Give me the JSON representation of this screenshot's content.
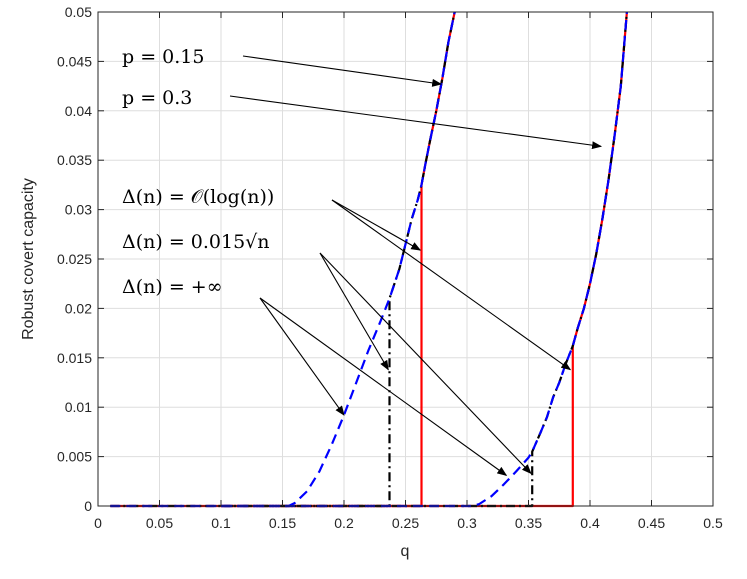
{
  "chart_data": {
    "type": "line",
    "xlabel": "q",
    "ylabel": "Robust covert capacity",
    "xlim": [
      0,
      0.5
    ],
    "ylim": [
      0,
      0.05
    ],
    "grid": true,
    "xticks": [
      "0",
      "0.05",
      "0.1",
      "0.15",
      "0.2",
      "0.25",
      "0.3",
      "0.35",
      "0.4",
      "0.45",
      "0.5"
    ],
    "yticks": [
      "0",
      "0.005",
      "0.01",
      "0.015",
      "0.02",
      "0.025",
      "0.03",
      "0.035",
      "0.04",
      "0.045",
      "0.05"
    ],
    "series": [
      {
        "style": "red-solid",
        "color": "#ff0000",
        "segments": [
          {
            "x": [
              0.01,
              0.263,
              0.263,
              0.266,
              0.27,
              0.275,
              0.28,
              0.285,
              0.29
            ],
            "y": [
              0,
              0,
              0.0325,
              0.0345,
              0.037,
              0.04,
              0.0433,
              0.047,
              0.05
            ]
          },
          {
            "x": [
              0.1,
              0.386,
              0.386,
              0.39,
              0.395,
              0.4,
              0.405,
              0.41,
              0.415,
              0.42,
              0.425,
              0.43
            ],
            "y": [
              0,
              0,
              0.0162,
              0.018,
              0.02,
              0.0225,
              0.0255,
              0.029,
              0.033,
              0.0375,
              0.0425,
              0.05
            ]
          }
        ]
      },
      {
        "style": "black-dashdot",
        "color": "#000000",
        "segments": [
          {
            "x": [
              0.01,
              0.237,
              0.237,
              0.245,
              0.25,
              0.255,
              0.26,
              0.263,
              0.266,
              0.27,
              0.275,
              0.28,
              0.285,
              0.29
            ],
            "y": [
              0,
              0,
              0.021,
              0.024,
              0.0265,
              0.029,
              0.031,
              0.0325,
              0.0345,
              0.037,
              0.04,
              0.0433,
              0.047,
              0.05
            ]
          },
          {
            "x": [
              0.1,
              0.353,
              0.353,
              0.36,
              0.365,
              0.37,
              0.375,
              0.38,
              0.386,
              0.39,
              0.395,
              0.4,
              0.405,
              0.41,
              0.415,
              0.42,
              0.425,
              0.43
            ],
            "y": [
              0,
              0,
              0.0055,
              0.0075,
              0.009,
              0.011,
              0.0125,
              0.0143,
              0.0162,
              0.018,
              0.02,
              0.0225,
              0.0255,
              0.029,
              0.033,
              0.0375,
              0.0425,
              0.05
            ]
          }
        ]
      },
      {
        "style": "blue-dashed",
        "color": "#0000ff",
        "segments": [
          {
            "x": [
              0.01,
              0.155,
              0.16,
              0.17,
              0.18,
              0.19,
              0.2,
              0.21,
              0.22,
              0.23,
              0.237,
              0.245,
              0.25,
              0.255,
              0.26,
              0.263,
              0.266,
              0.27,
              0.275,
              0.28,
              0.285,
              0.29
            ],
            "y": [
              0,
              0,
              0.0003,
              0.0015,
              0.0035,
              0.0062,
              0.0092,
              0.0125,
              0.0158,
              0.0188,
              0.021,
              0.024,
              0.0265,
              0.029,
              0.031,
              0.0325,
              0.0345,
              0.037,
              0.04,
              0.0433,
              0.047,
              0.05
            ]
          },
          {
            "x": [
              0.1,
              0.305,
              0.31,
              0.32,
              0.33,
              0.34,
              0.35,
              0.353,
              0.36,
              0.365,
              0.37,
              0.375,
              0.38,
              0.386,
              0.39,
              0.395,
              0.4,
              0.405,
              0.41,
              0.415,
              0.42,
              0.425,
              0.43
            ],
            "y": [
              0,
              0,
              0.0002,
              0.001,
              0.0022,
              0.0035,
              0.0049,
              0.0055,
              0.0075,
              0.009,
              0.011,
              0.0125,
              0.0143,
              0.0162,
              0.018,
              0.02,
              0.0225,
              0.0255,
              0.029,
              0.033,
              0.0375,
              0.0425,
              0.05
            ]
          }
        ]
      }
    ],
    "annotations": [
      {
        "text": "p = 0.15",
        "arrows_to": [
          [
            0.279,
            0.0427
          ]
        ]
      },
      {
        "text": "p = 0.3",
        "arrows_to": [
          [
            0.409,
            0.0364
          ]
        ]
      },
      {
        "text": "Δ(n) = 𝒪(log(n))",
        "arrows_to": [
          [
            0.262,
            0.0259
          ],
          [
            0.384,
            0.0138
          ]
        ]
      },
      {
        "text": "Δ(n) = 0.015√n",
        "arrows_to": [
          [
            0.236,
            0.0138
          ],
          [
            0.352,
            0.0033
          ]
        ]
      },
      {
        "text": "Δ(n) = +∞",
        "arrows_to": [
          [
            0.2,
            0.0092
          ],
          [
            0.332,
            0.0031
          ]
        ]
      }
    ]
  }
}
